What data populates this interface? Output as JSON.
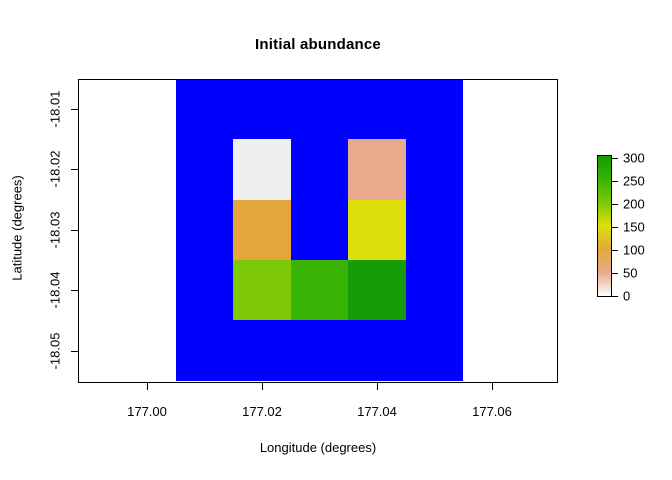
{
  "title": "Initial abundance",
  "axes": {
    "x": {
      "label": "Longitude (degrees)",
      "ticks": [
        "177.00",
        "177.02",
        "177.04",
        "177.06"
      ],
      "tick_values": [
        177.0,
        177.02,
        177.04,
        177.06
      ]
    },
    "y": {
      "label": "Latitude (degrees)",
      "ticks": [
        "-18.01",
        "-18.02",
        "-18.03",
        "-18.04",
        "-18.05"
      ],
      "tick_values": [
        -18.01,
        -18.02,
        -18.03,
        -18.04,
        -18.05
      ]
    }
  },
  "legend": {
    "ticks": [
      "300",
      "250",
      "200",
      "150",
      "100",
      "50",
      "0"
    ],
    "tick_values": [
      300,
      250,
      200,
      150,
      100,
      50,
      0
    ]
  },
  "chart_data": {
    "type": "heatmap",
    "title": "Initial abundance",
    "xlabel": "Longitude (degrees)",
    "ylabel": "Latitude (degrees)",
    "x_ticks": [
      177.0,
      177.02,
      177.04,
      177.06
    ],
    "y_ticks": [
      -18.01,
      -18.02,
      -18.03,
      -18.04,
      -18.05
    ],
    "xlim": [
      176.988,
      177.071
    ],
    "ylim": [
      -18.056,
      -18.005
    ],
    "grid": false,
    "cell_size_degrees": 0.01,
    "background_extent": {
      "lon": [
        177.005,
        177.055
      ],
      "lat": [
        -18.055,
        -18.005
      ],
      "color": "#0000ff",
      "meaning": "raster region shown in solid blue"
    },
    "cells": [
      {
        "lon": 177.02,
        "lat": -18.02,
        "value": 10,
        "color": "#efefef"
      },
      {
        "lon": 177.04,
        "lat": -18.02,
        "value": 50,
        "color": "#e7aa8c"
      },
      {
        "lon": 177.02,
        "lat": -18.03,
        "value": 100,
        "color": "#e3a73d"
      },
      {
        "lon": 177.04,
        "lat": -18.03,
        "value": 150,
        "color": "#dfdf0e"
      },
      {
        "lon": 177.02,
        "lat": -18.04,
        "value": 200,
        "color": "#7cc806"
      },
      {
        "lon": 177.03,
        "lat": -18.04,
        "value": 250,
        "color": "#39b306"
      },
      {
        "lon": 177.04,
        "lat": -18.04,
        "value": 300,
        "color": "#169a06"
      }
    ],
    "colorbar": {
      "range": [
        0,
        300
      ],
      "ticks": [
        0,
        50,
        100,
        150,
        200,
        250,
        300
      ],
      "position": "right",
      "stops_bottom_to_top": [
        "#ffffff",
        "#e7aa8c",
        "#e3a73d",
        "#dfdf0e",
        "#7cc806",
        "#39b306",
        "#119c00"
      ]
    }
  }
}
